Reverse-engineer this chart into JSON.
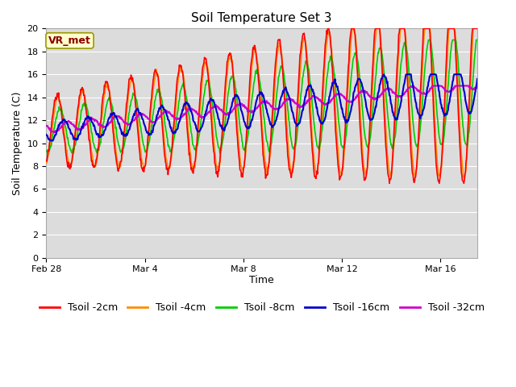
{
  "title": "Soil Temperature Set 3",
  "xlabel": "Time",
  "ylabel": "Soil Temperature (C)",
  "ylim": [
    0,
    20
  ],
  "yticks": [
    0,
    2,
    4,
    6,
    8,
    10,
    12,
    14,
    16,
    18,
    20
  ],
  "xtick_positions": [
    0,
    4,
    8,
    12,
    16
  ],
  "xtick_labels": [
    "Feb 28",
    "Mar 4",
    "Mar 8",
    "Mar 12",
    "Mar 16"
  ],
  "xlim": [
    0,
    17.5
  ],
  "colors": {
    "Tsoil -2cm": "#FF0000",
    "Tsoil -4cm": "#FF8C00",
    "Tsoil -8cm": "#00CC00",
    "Tsoil -16cm": "#0000CC",
    "Tsoil -32cm": "#CC00CC"
  },
  "fig_facecolor": "#FFFFFF",
  "plot_bg": "#DCDCDC",
  "grid_color": "#FFFFFF",
  "annotation_text": "VR_met",
  "annotation_color": "#8B0000",
  "annotation_bg": "#FFFFCC",
  "annotation_edge": "#999900",
  "title_fontsize": 11,
  "axis_fontsize": 9,
  "tick_fontsize": 8,
  "legend_fontsize": 9,
  "linewidth_shallow": 1.2,
  "linewidth_deep": 1.5
}
